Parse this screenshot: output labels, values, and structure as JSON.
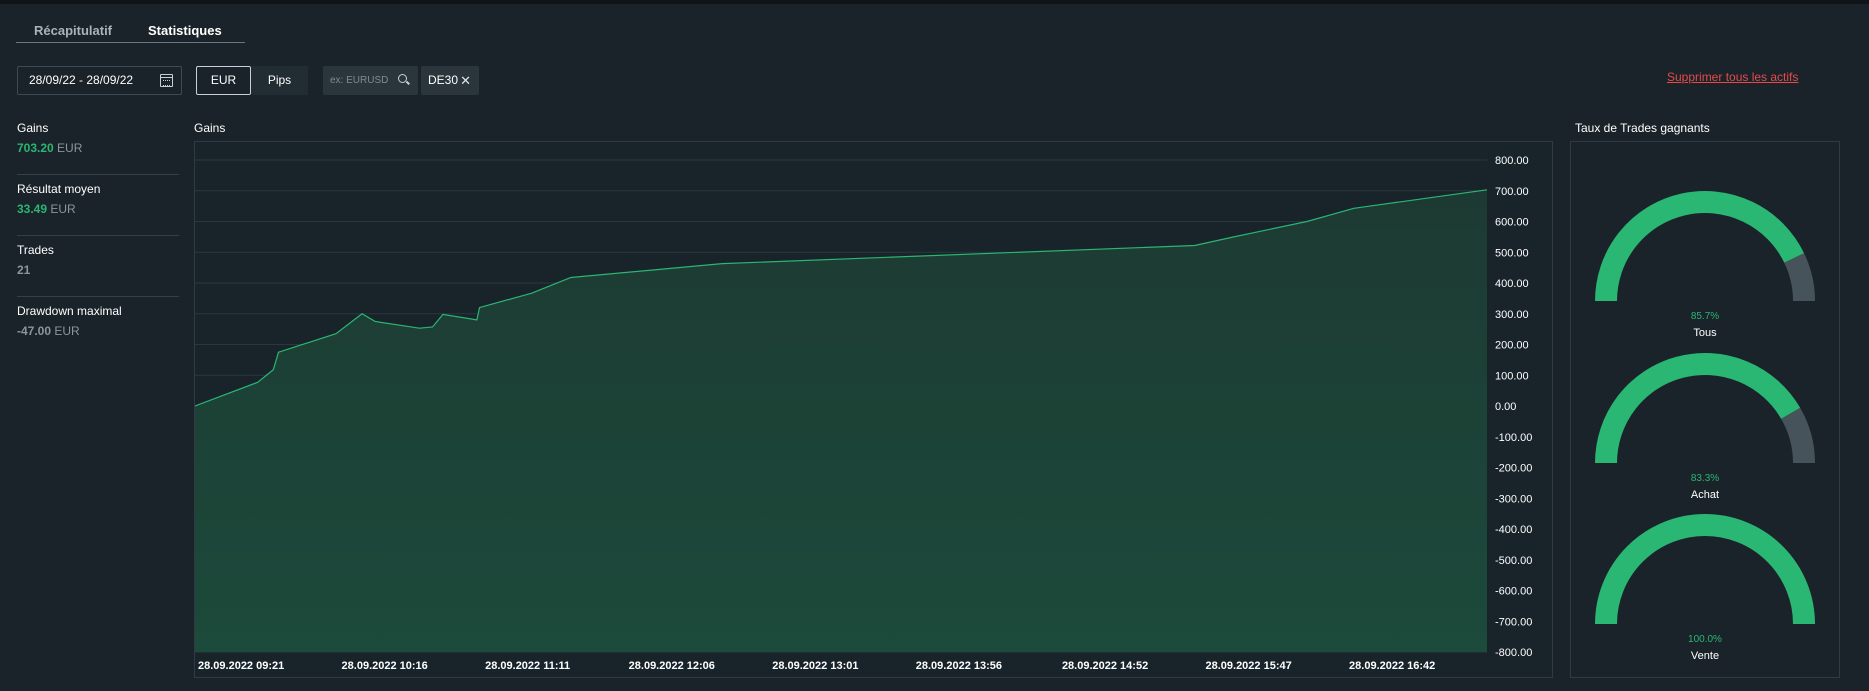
{
  "tabs": [
    {
      "label": "Récapitulatif",
      "active": false
    },
    {
      "label": "Statistiques",
      "active": true
    }
  ],
  "filters": {
    "date_range": "28/09/22 - 28/09/22",
    "units": [
      "EUR",
      "Pips"
    ],
    "selected_unit": "EUR",
    "search_placeholder": "ex: EURUSD",
    "selected_asset": "DE30",
    "delete_all_label": "Supprimer tous les actifs"
  },
  "stats": [
    {
      "label": "Gains",
      "value": "703.20",
      "unit": "EUR",
      "tone": "green"
    },
    {
      "label": "Résultat moyen",
      "value": "33.49",
      "unit": "EUR",
      "tone": "green"
    },
    {
      "label": "Trades",
      "value": "21",
      "unit": "",
      "tone": "grey"
    },
    {
      "label": "Drawdown maximal",
      "value": "-47.00",
      "unit": "EUR",
      "tone": "grey"
    }
  ],
  "chart_title": "Gains",
  "chart_data": {
    "type": "area",
    "title": "Gains",
    "xlabel": "",
    "ylabel": "",
    "ylim": [
      -800,
      800
    ],
    "y_ticks": [
      "800.00",
      "700.00",
      "600.00",
      "500.00",
      "400.00",
      "300.00",
      "200.00",
      "100.00",
      "0.00",
      "-100.00",
      "-200.00",
      "-300.00",
      "-400.00",
      "-500.00",
      "-600.00",
      "-700.00",
      "-800.00"
    ],
    "x_ticks": [
      "28.09.2022 09:21",
      "28.09.2022 10:16",
      "28.09.2022 11:11",
      "28.09.2022 12:06",
      "28.09.2022 13:01",
      "28.09.2022 13:56",
      "28.09.2022 14:52",
      "28.09.2022 15:47",
      "28.09.2022 16:42"
    ],
    "x_tick_minutes": [
      0,
      55,
      110,
      165,
      220,
      275,
      331,
      386,
      441
    ],
    "x_range_minutes": [
      0,
      495
    ],
    "grid": true,
    "color": "#2ab673",
    "points": [
      {
        "x": 0,
        "y": 0
      },
      {
        "x": 24,
        "y": 77
      },
      {
        "x": 30,
        "y": 118
      },
      {
        "x": 32,
        "y": 175
      },
      {
        "x": 54,
        "y": 235
      },
      {
        "x": 64,
        "y": 300
      },
      {
        "x": 69,
        "y": 275
      },
      {
        "x": 86,
        "y": 253
      },
      {
        "x": 91,
        "y": 257
      },
      {
        "x": 95,
        "y": 298
      },
      {
        "x": 108,
        "y": 280
      },
      {
        "x": 109,
        "y": 320
      },
      {
        "x": 129,
        "y": 367
      },
      {
        "x": 144,
        "y": 418
      },
      {
        "x": 202,
        "y": 463
      },
      {
        "x": 383,
        "y": 522
      },
      {
        "x": 398,
        "y": 550
      },
      {
        "x": 426,
        "y": 600
      },
      {
        "x": 444,
        "y": 643
      },
      {
        "x": 495,
        "y": 703
      }
    ]
  },
  "winrate_title": "Taux de Trades gagnants",
  "winrates": [
    {
      "label": "Tous",
      "value": 85.7,
      "display": "85.7%"
    },
    {
      "label": "Achat",
      "value": 83.3,
      "display": "83.3%"
    },
    {
      "label": "Vente",
      "value": 100.0,
      "display": "100.0%"
    }
  ],
  "colors": {
    "positive": "#2ab673",
    "negative_part": "#46535b",
    "danger": "#e84a4a"
  }
}
